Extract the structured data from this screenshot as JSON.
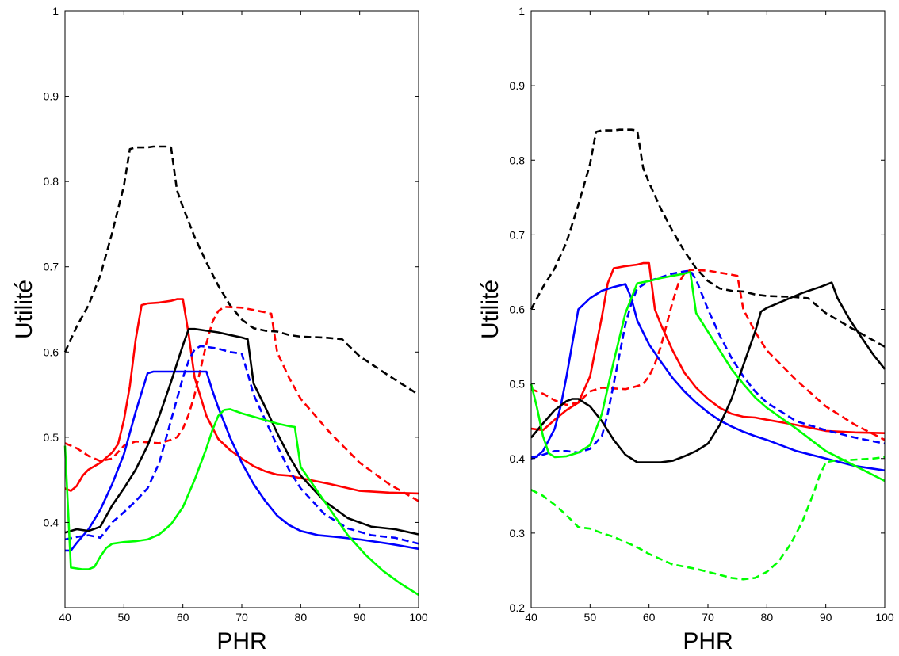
{
  "chart_data": [
    {
      "type": "line",
      "xlabel": "PHR",
      "ylabel": "Utilité",
      "xlim": [
        40,
        100
      ],
      "ylim": [
        0.3,
        1
      ],
      "xticks": [
        "40",
        "50",
        "60",
        "70",
        "80",
        "90",
        "100"
      ],
      "yticks": [
        "0.4",
        "0.5",
        "0.6",
        "0.7",
        "0.8",
        "0.9",
        "1"
      ],
      "grid": false,
      "series": [
        {
          "color": "#000000",
          "dash": true,
          "x": [
            40,
            41,
            42,
            44,
            46,
            48,
            50,
            51,
            52,
            54,
            55,
            56,
            57,
            58,
            59,
            60,
            62,
            64,
            66,
            68,
            70,
            72,
            74,
            76,
            78,
            80,
            84,
            87,
            90,
            95,
            100
          ],
          "y": [
            0.6,
            0.615,
            0.63,
            0.655,
            0.69,
            0.74,
            0.795,
            0.838,
            0.84,
            0.84,
            0.841,
            0.841,
            0.841,
            0.84,
            0.79,
            0.77,
            0.735,
            0.705,
            0.678,
            0.655,
            0.638,
            0.628,
            0.625,
            0.624,
            0.62,
            0.618,
            0.617,
            0.615,
            0.595,
            0.572,
            0.55
          ]
        },
        {
          "color": "#ff0000",
          "dash": false,
          "x": [
            40,
            41,
            42,
            43,
            44,
            46,
            48,
            49,
            50,
            51,
            52,
            53,
            54,
            56,
            58,
            59,
            60,
            61,
            62,
            64,
            66,
            68,
            70,
            72,
            74,
            76,
            78,
            80,
            85,
            90,
            95,
            100
          ],
          "y": [
            0.44,
            0.437,
            0.443,
            0.455,
            0.462,
            0.47,
            0.482,
            0.492,
            0.52,
            0.56,
            0.615,
            0.655,
            0.657,
            0.658,
            0.66,
            0.662,
            0.662,
            0.62,
            0.57,
            0.525,
            0.498,
            0.485,
            0.475,
            0.466,
            0.46,
            0.456,
            0.455,
            0.452,
            0.445,
            0.437,
            0.435,
            0.434
          ]
        },
        {
          "color": "#ff0000",
          "dash": true,
          "x": [
            40,
            42,
            44,
            46,
            48,
            50,
            52,
            54,
            56,
            58,
            59,
            60,
            61,
            62,
            63,
            64,
            65,
            66,
            67,
            70,
            73,
            75,
            76,
            78,
            80,
            85,
            90,
            95,
            100
          ],
          "y": [
            0.493,
            0.487,
            0.478,
            0.472,
            0.475,
            0.49,
            0.495,
            0.494,
            0.493,
            0.497,
            0.5,
            0.51,
            0.527,
            0.55,
            0.58,
            0.61,
            0.635,
            0.648,
            0.653,
            0.652,
            0.648,
            0.645,
            0.6,
            0.57,
            0.545,
            0.505,
            0.47,
            0.445,
            0.425
          ]
        },
        {
          "color": "#0000ff",
          "dash": false,
          "x": [
            40,
            41,
            42,
            44,
            46,
            48,
            50,
            52,
            54,
            55,
            56,
            58,
            60,
            62,
            63,
            64,
            65,
            66,
            68,
            70,
            72,
            74,
            76,
            78,
            80,
            83,
            86,
            90,
            95,
            100
          ],
          "y": [
            0.367,
            0.367,
            0.376,
            0.392,
            0.415,
            0.445,
            0.48,
            0.53,
            0.575,
            0.577,
            0.577,
            0.577,
            0.577,
            0.577,
            0.577,
            0.577,
            0.555,
            0.535,
            0.5,
            0.47,
            0.445,
            0.425,
            0.408,
            0.397,
            0.39,
            0.385,
            0.383,
            0.38,
            0.375,
            0.369
          ]
        },
        {
          "color": "#0000ff",
          "dash": true,
          "x": [
            40,
            42,
            44,
            46,
            48,
            50,
            52,
            54,
            56,
            58,
            60,
            61,
            62,
            63,
            64,
            66,
            68,
            70,
            71,
            72,
            74,
            76,
            78,
            80,
            84,
            88,
            92,
            96,
            100
          ],
          "y": [
            0.38,
            0.383,
            0.385,
            0.382,
            0.4,
            0.412,
            0.425,
            0.44,
            0.47,
            0.52,
            0.57,
            0.59,
            0.603,
            0.607,
            0.606,
            0.604,
            0.6,
            0.598,
            0.575,
            0.55,
            0.52,
            0.49,
            0.462,
            0.44,
            0.41,
            0.393,
            0.385,
            0.382,
            0.375
          ]
        },
        {
          "color": "#000000",
          "dash": false,
          "x": [
            40,
            42,
            44,
            46,
            48,
            50,
            52,
            54,
            56,
            58,
            60,
            61,
            62,
            64,
            66,
            68,
            70,
            71,
            72,
            74,
            76,
            78,
            80,
            84,
            88,
            92,
            96,
            100
          ],
          "y": [
            0.388,
            0.392,
            0.39,
            0.395,
            0.42,
            0.44,
            0.462,
            0.49,
            0.525,
            0.565,
            0.608,
            0.627,
            0.627,
            0.625,
            0.623,
            0.62,
            0.617,
            0.615,
            0.563,
            0.535,
            0.505,
            0.478,
            0.455,
            0.425,
            0.405,
            0.395,
            0.392,
            0.386
          ]
        },
        {
          "color": "#00ff00",
          "dash": false,
          "x": [
            40,
            41,
            42,
            43,
            44,
            45,
            46,
            47,
            48,
            50,
            52,
            54,
            56,
            58,
            60,
            62,
            64,
            65,
            66,
            67,
            68,
            70,
            72,
            74,
            76,
            78,
            79,
            80,
            82,
            85,
            88,
            91,
            94,
            97,
            100
          ],
          "y": [
            0.49,
            0.347,
            0.346,
            0.345,
            0.345,
            0.348,
            0.36,
            0.37,
            0.375,
            0.377,
            0.378,
            0.38,
            0.386,
            0.398,
            0.418,
            0.45,
            0.487,
            0.508,
            0.525,
            0.532,
            0.533,
            0.528,
            0.524,
            0.52,
            0.516,
            0.513,
            0.512,
            0.465,
            0.445,
            0.415,
            0.385,
            0.362,
            0.343,
            0.328,
            0.315
          ]
        }
      ]
    },
    {
      "type": "line",
      "xlabel": "PHR",
      "ylabel": "Utilité",
      "xlim": [
        40,
        100
      ],
      "ylim": [
        0.2,
        1
      ],
      "xticks": [
        "40",
        "50",
        "60",
        "70",
        "80",
        "90",
        "100"
      ],
      "yticks": [
        "0.2",
        "0.3",
        "0.4",
        "0.5",
        "0.6",
        "0.7",
        "0.8",
        "0.9",
        "1"
      ],
      "grid": false,
      "series": [
        {
          "color": "#000000",
          "dash": true,
          "x": [
            40,
            41,
            42,
            44,
            46,
            48,
            50,
            51,
            52,
            54,
            55,
            56,
            57,
            58,
            59,
            60,
            62,
            64,
            66,
            68,
            70,
            72,
            74,
            76,
            78,
            80,
            84,
            87,
            90,
            95,
            100
          ],
          "y": [
            0.6,
            0.615,
            0.63,
            0.655,
            0.69,
            0.74,
            0.795,
            0.838,
            0.84,
            0.84,
            0.841,
            0.841,
            0.841,
            0.84,
            0.79,
            0.77,
            0.735,
            0.705,
            0.678,
            0.655,
            0.638,
            0.628,
            0.625,
            0.624,
            0.62,
            0.618,
            0.617,
            0.615,
            0.595,
            0.572,
            0.55
          ]
        },
        {
          "color": "#ff0000",
          "dash": false,
          "x": [
            40,
            42,
            44,
            46,
            48,
            50,
            52,
            53,
            54,
            56,
            58,
            59,
            60,
            61,
            62,
            64,
            66,
            68,
            70,
            72,
            74,
            76,
            78,
            80,
            85,
            90,
            95,
            100
          ],
          "y": [
            0.44,
            0.438,
            0.452,
            0.465,
            0.475,
            0.51,
            0.59,
            0.635,
            0.655,
            0.658,
            0.66,
            0.662,
            0.662,
            0.6,
            0.58,
            0.545,
            0.515,
            0.495,
            0.48,
            0.468,
            0.46,
            0.456,
            0.455,
            0.452,
            0.445,
            0.437,
            0.435,
            0.434
          ]
        },
        {
          "color": "#ff0000",
          "dash": true,
          "x": [
            40,
            42,
            44,
            46,
            48,
            50,
            52,
            54,
            56,
            58,
            59,
            60,
            61,
            62,
            63,
            64,
            65,
            66,
            67,
            70,
            73,
            75,
            76,
            78,
            80,
            85,
            90,
            95,
            100
          ],
          "y": [
            0.493,
            0.487,
            0.478,
            0.472,
            0.475,
            0.49,
            0.495,
            0.494,
            0.493,
            0.497,
            0.5,
            0.51,
            0.527,
            0.55,
            0.58,
            0.61,
            0.635,
            0.648,
            0.653,
            0.652,
            0.648,
            0.645,
            0.6,
            0.57,
            0.545,
            0.505,
            0.47,
            0.445,
            0.425
          ]
        },
        {
          "color": "#0000ff",
          "dash": false,
          "x": [
            40,
            41,
            42,
            43,
            44,
            45,
            46,
            47,
            48,
            50,
            52,
            54,
            55,
            56,
            57,
            58,
            60,
            62,
            64,
            66,
            68,
            70,
            72,
            74,
            76,
            78,
            80,
            85,
            90,
            95,
            100
          ],
          "y": [
            0.402,
            0.403,
            0.41,
            0.425,
            0.44,
            0.47,
            0.51,
            0.555,
            0.6,
            0.615,
            0.625,
            0.63,
            0.632,
            0.634,
            0.615,
            0.585,
            0.553,
            0.53,
            0.508,
            0.49,
            0.475,
            0.462,
            0.451,
            0.443,
            0.436,
            0.43,
            0.425,
            0.41,
            0.4,
            0.39,
            0.384
          ]
        },
        {
          "color": "#0000ff",
          "dash": true,
          "x": [
            40,
            42,
            44,
            46,
            48,
            50,
            52,
            53,
            54,
            55,
            56,
            57,
            58,
            60,
            62,
            64,
            66,
            67,
            68,
            70,
            72,
            74,
            76,
            78,
            80,
            85,
            90,
            95,
            100
          ],
          "y": [
            0.4,
            0.405,
            0.41,
            0.41,
            0.408,
            0.413,
            0.43,
            0.46,
            0.5,
            0.54,
            0.58,
            0.608,
            0.628,
            0.638,
            0.643,
            0.648,
            0.651,
            0.652,
            0.64,
            0.6,
            0.565,
            0.535,
            0.51,
            0.49,
            0.475,
            0.45,
            0.438,
            0.428,
            0.42
          ]
        },
        {
          "color": "#000000",
          "dash": false,
          "x": [
            40,
            42,
            44,
            46,
            47,
            48,
            50,
            52,
            54,
            56,
            58,
            60,
            62,
            64,
            66,
            68,
            70,
            72,
            74,
            76,
            78,
            79,
            80,
            83,
            86,
            89,
            91,
            92,
            94,
            96,
            98,
            100
          ],
          "y": [
            0.428,
            0.447,
            0.465,
            0.477,
            0.48,
            0.48,
            0.47,
            0.45,
            0.425,
            0.405,
            0.395,
            0.395,
            0.395,
            0.397,
            0.403,
            0.41,
            0.42,
            0.445,
            0.48,
            0.525,
            0.57,
            0.597,
            0.602,
            0.612,
            0.622,
            0.63,
            0.636,
            0.615,
            0.587,
            0.563,
            0.54,
            0.52
          ]
        },
        {
          "color": "#00ff00",
          "dash": false,
          "x": [
            40,
            41,
            42,
            43,
            44,
            46,
            48,
            50,
            52,
            54,
            56,
            58,
            60,
            62,
            64,
            66,
            67,
            68,
            70,
            72,
            74,
            76,
            78,
            80,
            85,
            90,
            95,
            100
          ],
          "y": [
            0.5,
            0.468,
            0.43,
            0.407,
            0.402,
            0.403,
            0.408,
            0.418,
            0.46,
            0.53,
            0.595,
            0.635,
            0.638,
            0.642,
            0.645,
            0.648,
            0.65,
            0.595,
            0.57,
            0.545,
            0.52,
            0.5,
            0.482,
            0.468,
            0.44,
            0.41,
            0.39,
            0.37
          ]
        },
        {
          "color": "#00ff00",
          "dash": true,
          "x": [
            40,
            42,
            44,
            46,
            48,
            50,
            52,
            54,
            56,
            58,
            60,
            62,
            64,
            66,
            68,
            70,
            72,
            74,
            76,
            78,
            80,
            82,
            84,
            86,
            88,
            89,
            90,
            92,
            94,
            96,
            98,
            100
          ],
          "y": [
            0.358,
            0.35,
            0.338,
            0.324,
            0.308,
            0.306,
            0.3,
            0.295,
            0.288,
            0.281,
            0.272,
            0.265,
            0.258,
            0.255,
            0.252,
            0.248,
            0.244,
            0.24,
            0.238,
            0.24,
            0.248,
            0.262,
            0.285,
            0.315,
            0.355,
            0.378,
            0.395,
            0.398,
            0.398,
            0.399,
            0.4,
            0.402
          ]
        }
      ]
    }
  ]
}
